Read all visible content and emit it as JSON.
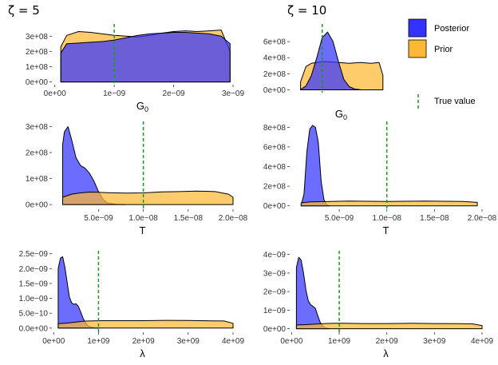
{
  "column_titles": [
    "ζ = 5",
    "ζ = 10"
  ],
  "legend": {
    "posterior_label": "Posterior",
    "prior_label": "Prior",
    "true_value_label": "True value",
    "posterior_color": "#3333ff",
    "prior_color": "#ffb833",
    "true_value_color": "#1a9a1a"
  },
  "chart_data": [
    {
      "type": "area",
      "panel": "G0, ζ = 5",
      "xlabel": "G",
      "xlabel_sub": "0",
      "xlim": [
        -5e-11,
        3e-09
      ],
      "ylim": [
        -18000000.0,
        380000000.0
      ],
      "x_ticks": [
        0,
        1e-09,
        2e-09,
        3e-09
      ],
      "x_tick_labels": [
        "0e+00",
        "1e−09",
        "2e−09",
        "3e−09"
      ],
      "y_ticks": [
        0,
        100000000.0,
        200000000.0,
        300000000.0
      ],
      "y_tick_labels": [
        "0e+00",
        "1e+08",
        "2e+08",
        "3e+08"
      ],
      "true_value": 1e-09,
      "series": [
        {
          "name": "Prior",
          "x": [
            1e-10,
            2e-10,
            4e-10,
            6e-10,
            8e-10,
            1e-09,
            1.2e-09,
            1.4e-09,
            1.6e-09,
            1.8e-09,
            2e-09,
            2.2e-09,
            2.4e-09,
            2.6e-09,
            2.8e-09,
            2.95e-09
          ],
          "y": [
            230000000.0,
            305000000.0,
            330000000.0,
            325000000.0,
            315000000.0,
            305000000.0,
            300000000.0,
            295000000.0,
            305000000.0,
            320000000.0,
            330000000.0,
            335000000.0,
            330000000.0,
            335000000.0,
            340000000.0,
            200000000.0
          ]
        },
        {
          "name": "Posterior",
          "x": [
            1e-10,
            2e-10,
            4e-10,
            6e-10,
            8e-10,
            1e-09,
            1.2e-09,
            1.4e-09,
            1.6e-09,
            1.8e-09,
            2e-09,
            2.2e-09,
            2.4e-09,
            2.6e-09,
            2.8e-09,
            2.95e-09
          ],
          "y": [
            190000000.0,
            250000000.0,
            255000000.0,
            260000000.0,
            265000000.0,
            275000000.0,
            290000000.0,
            305000000.0,
            315000000.0,
            320000000.0,
            325000000.0,
            325000000.0,
            320000000.0,
            315000000.0,
            300000000.0,
            250000000.0
          ]
        }
      ]
    },
    {
      "type": "area",
      "panel": "G0, ζ = 10",
      "xlabel": "G",
      "xlabel_sub": "0",
      "xlim": [
        -2e-10,
        1.7e-09
      ],
      "ylim": [
        -35000000.0,
        820000000.0
      ],
      "x_ticks": [],
      "x_tick_labels": [],
      "y_ticks": [
        0,
        200000000.0,
        400000000.0,
        600000000.0
      ],
      "y_tick_labels": [
        "0e+00",
        "2e+08",
        "4e+08",
        "6e+08"
      ],
      "true_value": 4e-10,
      "series": [
        {
          "name": "Prior",
          "x": [
            0,
            1e-10,
            2e-10,
            3e-10,
            4e-10,
            5e-10,
            7e-10,
            9e-10,
            1.1e-09,
            1.3e-09,
            1.45e-09,
            1.52e-09
          ],
          "y": [
            100000000.0,
            290000000.0,
            330000000.0,
            340000000.0,
            350000000.0,
            350000000.0,
            340000000.0,
            330000000.0,
            340000000.0,
            330000000.0,
            340000000.0,
            180000000.0
          ]
        },
        {
          "name": "Posterior",
          "x": [
            0,
            1e-10,
            2e-10,
            3e-10,
            4e-10,
            5e-10,
            6e-10,
            7e-10,
            8e-10,
            9e-10,
            1e-09,
            1.1e-09
          ],
          "y": [
            5000000.0,
            50000000.0,
            180000000.0,
            400000000.0,
            650000000.0,
            720000000.0,
            600000000.0,
            350000000.0,
            130000000.0,
            40000000.0,
            10000000.0,
            2000000.0
          ]
        }
      ]
    },
    {
      "type": "area",
      "panel": "T, ζ = 5",
      "xlabel": "T",
      "xlim": [
        -2e-10,
        2e-08
      ],
      "ylim": [
        -18000000.0,
        320000000.0
      ],
      "x_ticks": [
        5e-09,
        1e-08,
        1.5e-08,
        2e-08
      ],
      "x_tick_labels": [
        "5.0e−09",
        "1.0e−08",
        "1.5e−08",
        "2.0e−08"
      ],
      "y_ticks": [
        0,
        100000000.0,
        200000000.0,
        300000000.0
      ],
      "y_tick_labels": [
        "0e+00",
        "1e+08",
        "2e+08",
        "3e+08"
      ],
      "true_value": 1e-08,
      "series": [
        {
          "name": "Posterior",
          "x": [
            1e-09,
            1.2e-09,
            1.6e-09,
            2e-09,
            2.5e-09,
            3e-09,
            3.5e-09,
            4e-09,
            4.5e-09,
            5e-09,
            5.5e-09,
            6e-09,
            7e-09,
            8e-09
          ],
          "y": [
            230000000.0,
            280000000.0,
            300000000.0,
            250000000.0,
            180000000.0,
            150000000.0,
            140000000.0,
            120000000.0,
            90000000.0,
            50000000.0,
            20000000.0,
            6000000.0,
            1000000.0,
            0
          ]
        },
        {
          "name": "Prior",
          "x": [
            1e-09,
            2e-09,
            3e-09,
            4e-09,
            5e-09,
            6e-09,
            8e-09,
            1e-08,
            1.2e-08,
            1.4e-08,
            1.6e-08,
            1.8e-08,
            1.95e-08,
            2e-08
          ],
          "y": [
            28000000.0,
            40000000.0,
            45000000.0,
            48000000.0,
            47000000.0,
            46000000.0,
            44000000.0,
            45000000.0,
            49000000.0,
            50000000.0,
            52000000.0,
            50000000.0,
            40000000.0,
            28000000.0
          ]
        }
      ]
    },
    {
      "type": "area",
      "panel": "T, ζ = 10",
      "xlabel": "T",
      "xlim": [
        -2e-10,
        2e-08
      ],
      "ylim": [
        -35000000.0,
        860000000.0
      ],
      "x_ticks": [
        5e-09,
        1e-08,
        1.5e-08,
        2e-08
      ],
      "x_tick_labels": [
        "5.0e−09",
        "1.0e−08",
        "1.5e−08",
        "2.0e−08"
      ],
      "y_ticks": [
        0,
        200000000.0,
        400000000.0,
        600000000.0,
        800000000.0
      ],
      "y_tick_labels": [
        "0e+00",
        "2e+08",
        "4e+08",
        "6e+08",
        "8e+08"
      ],
      "true_value": 1e-08,
      "series": [
        {
          "name": "Posterior",
          "x": [
            1e-09,
            1.3e-09,
            1.6e-09,
            1.9e-09,
            2.2e-09,
            2.5e-09,
            2.8e-09,
            3.1e-09,
            3.4e-09,
            3.7e-09,
            4e-09
          ],
          "y": [
            5000000.0,
            120000000.0,
            550000000.0,
            780000000.0,
            820000000.0,
            800000000.0,
            650000000.0,
            250000000.0,
            60000000.0,
            10000000.0,
            0
          ]
        },
        {
          "name": "Prior",
          "x": [
            1e-09,
            2e-09,
            3e-09,
            4e-09,
            6e-09,
            8e-09,
            1e-08,
            1.2e-08,
            1.4e-08,
            1.6e-08,
            1.8e-08,
            1.95e-08
          ],
          "y": [
            30000000.0,
            40000000.0,
            42000000.0,
            45000000.0,
            48000000.0,
            46000000.0,
            45000000.0,
            46000000.0,
            49000000.0,
            46000000.0,
            44000000.0,
            35000000.0
          ]
        }
      ]
    },
    {
      "type": "area",
      "panel": "λ, ζ = 5",
      "xlabel": "λ",
      "xlim": [
        -40000000.0,
        4000000000.0
      ],
      "ylim": [
        -1.4e-10,
        2.6e-09
      ],
      "x_ticks": [
        0,
        1000000000.0,
        2000000000.0,
        3000000000.0,
        4000000000.0
      ],
      "x_tick_labels": [
        "0e+00",
        "1e+09",
        "2e+09",
        "3e+09",
        "4e+09"
      ],
      "y_ticks": [
        0,
        5e-10,
        1e-09,
        1.5e-09,
        2e-09,
        2.5e-09
      ],
      "y_tick_labels": [
        "0.0e+00",
        "5.0e−10",
        "1.0e−09",
        "1.5e−09",
        "2.0e−09",
        "2.5e−09"
      ],
      "true_value": 1000000000.0,
      "series": [
        {
          "name": "Posterior",
          "x": [
            100000000.0,
            150000000.0,
            200000000.0,
            250000000.0,
            300000000.0,
            350000000.0,
            400000000.0,
            450000000.0,
            500000000.0,
            550000000.0,
            600000000.0,
            650000000.0,
            700000000.0,
            750000000.0,
            800000000.0,
            900000000.0,
            1000000000.0
          ],
          "y": [
            2e-09,
            2.35e-09,
            2.4e-09,
            2.05e-09,
            1.55e-09,
            1.05e-09,
            8.5e-10,
            8e-10,
            8.2e-10,
            7.3e-10,
            5.5e-10,
            3.5e-10,
            2e-10,
            1e-10,
            5e-11,
            1e-11,
            0
          ]
        },
        {
          "name": "Prior",
          "x": [
            100000000.0,
            300000000.0,
            500000000.0,
            700000000.0,
            900000000.0,
            1100000000.0,
            1500000000.0,
            2000000000.0,
            2500000000.0,
            3000000000.0,
            3500000000.0,
            3800000000.0,
            4000000000.0
          ],
          "y": [
            1.5e-10,
            1.7e-10,
            2e-10,
            2.35e-10,
            2.45e-10,
            2.5e-10,
            2.5e-10,
            2.5e-10,
            2.6e-10,
            2.55e-10,
            2.45e-10,
            2.4e-10,
            1.6e-10
          ]
        }
      ]
    },
    {
      "type": "area",
      "panel": "λ, ζ = 10",
      "xlabel": "λ",
      "xlim": [
        -40000000.0,
        4000000000.0
      ],
      "ylim": [
        -1.9e-10,
        4.2e-09
      ],
      "x_ticks": [
        0,
        1000000000.0,
        2000000000.0,
        3000000000.0,
        4000000000.0
      ],
      "x_tick_labels": [
        "0e+00",
        "1e+09",
        "2e+09",
        "3e+09",
        "4e+09"
      ],
      "y_ticks": [
        0,
        1e-09,
        2e-09,
        3e-09,
        4e-09
      ],
      "y_tick_labels": [
        "0e+00",
        "1e−09",
        "2e−09",
        "3e−09",
        "4e−09"
      ],
      "true_value": 1000000000.0,
      "series": [
        {
          "name": "Posterior",
          "x": [
            100000000.0,
            150000000.0,
            200000000.0,
            250000000.0,
            300000000.0,
            350000000.0,
            400000000.0,
            450000000.0,
            500000000.0,
            550000000.0,
            600000000.0,
            650000000.0,
            700000000.0,
            800000000.0
          ],
          "y": [
            3.3e-09,
            3.85e-09,
            3.7e-09,
            3e-09,
            2.1e-09,
            1.5e-09,
            1.3e-09,
            1.2e-09,
            1.1e-09,
            7e-10,
            3.5e-10,
            1.5e-10,
            5e-11,
            0
          ]
        },
        {
          "name": "Prior",
          "x": [
            100000000.0,
            300000000.0,
            500000000.0,
            700000000.0,
            900000000.0,
            1100000000.0,
            1500000000.0,
            2000000000.0,
            2500000000.0,
            3000000000.0,
            3500000000.0,
            3800000000.0,
            4000000000.0
          ],
          "y": [
            2e-10,
            2.2e-10,
            2.5e-10,
            2.8e-10,
            2.9e-10,
            2.9e-10,
            2.8e-10,
            2.8e-10,
            2.9e-10,
            2.8e-10,
            2.7e-10,
            2.6e-10,
            1.7e-10
          ]
        }
      ]
    }
  ]
}
